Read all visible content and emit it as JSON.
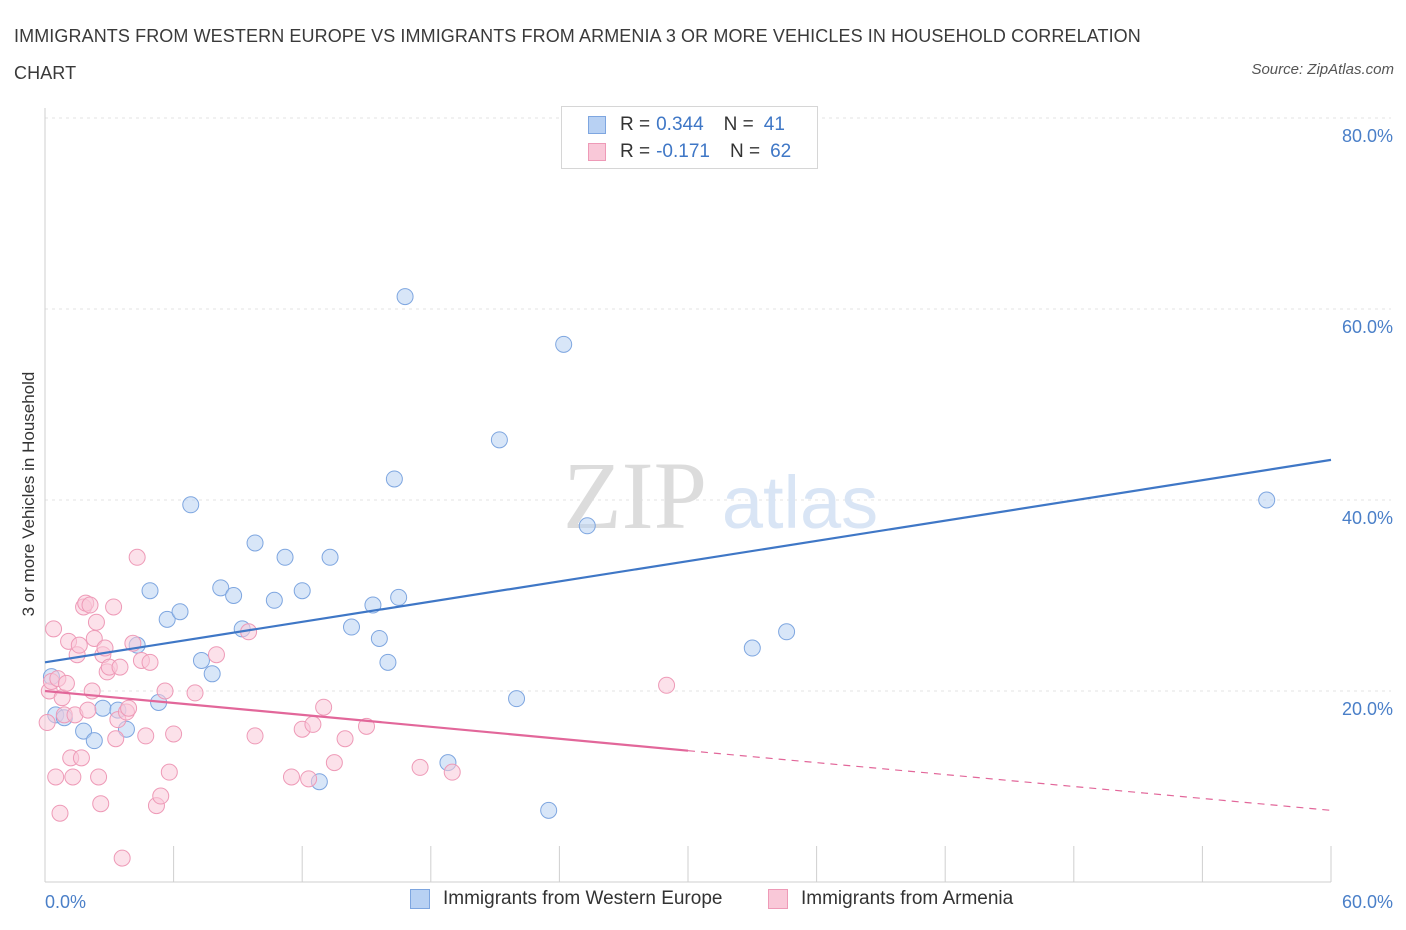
{
  "header": {
    "title": "IMMIGRANTS FROM WESTERN EUROPE VS IMMIGRANTS FROM ARMENIA 3 OR MORE VEHICLES IN HOUSEHOLD CORRELATION CHART",
    "source": "Source: ZipAtlas.com"
  },
  "watermark": {
    "zip": "ZIP",
    "atlas": "atlas"
  },
  "legend": {
    "r_label": "R =",
    "n_label": "N =",
    "rows": [
      {
        "r": "0.344",
        "n": "41",
        "fill": "#b8d1f3",
        "stroke": "#7ea6e0"
      },
      {
        "r": "-0.171",
        "n": "62",
        "fill": "#f9c8d8",
        "stroke": "#ee9ab7"
      }
    ]
  },
  "bottom_legend": [
    {
      "label": "Immigrants from Western Europe",
      "fill": "#b8d1f3",
      "stroke": "#7ea6e0"
    },
    {
      "label": "Immigrants from Armenia",
      "fill": "#f9c8d8",
      "stroke": "#ee9ab7"
    }
  ],
  "chart_data": {
    "type": "scatter",
    "ylabel": "3 or more Vehicles in Household",
    "xlim": [
      0,
      60
    ],
    "ylim": [
      0,
      80
    ],
    "x_tick_labels": [
      "0.0%",
      "60.0%"
    ],
    "y_ticks": [
      20,
      40,
      60,
      80
    ],
    "y_tick_labels": [
      "20.0%",
      "40.0%",
      "60.0%",
      "80.0%"
    ],
    "grid": true,
    "series": [
      {
        "name": "Immigrants from Western Europe",
        "color": "#3f77c6",
        "fill": "#b8d1f3",
        "stroke": "#7ea6e0",
        "trend": {
          "x": [
            0,
            60
          ],
          "y": [
            23.0,
            44.2
          ],
          "dashed_from": null
        },
        "points": [
          [
            0.3,
            21.5
          ],
          [
            0.5,
            17.5
          ],
          [
            0.9,
            17.2
          ],
          [
            1.8,
            15.8
          ],
          [
            2.3,
            14.8
          ],
          [
            2.7,
            18.2
          ],
          [
            3.4,
            18.0
          ],
          [
            3.8,
            16.0
          ],
          [
            4.3,
            24.8
          ],
          [
            4.9,
            30.5
          ],
          [
            5.3,
            18.8
          ],
          [
            5.7,
            27.5
          ],
          [
            6.3,
            28.3
          ],
          [
            6.8,
            39.5
          ],
          [
            7.3,
            23.2
          ],
          [
            7.8,
            21.8
          ],
          [
            8.2,
            30.8
          ],
          [
            8.8,
            30.0
          ],
          [
            9.2,
            26.5
          ],
          [
            9.8,
            35.5
          ],
          [
            10.7,
            29.5
          ],
          [
            11.2,
            34.0
          ],
          [
            12.0,
            30.5
          ],
          [
            12.8,
            10.5
          ],
          [
            13.3,
            34.0
          ],
          [
            14.3,
            26.7
          ],
          [
            15.3,
            29.0
          ],
          [
            15.6,
            25.5
          ],
          [
            16.0,
            23.0
          ],
          [
            16.3,
            42.2
          ],
          [
            16.5,
            29.8
          ],
          [
            16.8,
            61.3
          ],
          [
            18.8,
            12.5
          ],
          [
            21.2,
            46.3
          ],
          [
            22.0,
            19.2
          ],
          [
            23.5,
            7.5
          ],
          [
            24.2,
            56.3
          ],
          [
            25.3,
            37.3
          ],
          [
            33.0,
            24.5
          ],
          [
            34.6,
            26.2
          ],
          [
            57.0,
            40.0
          ]
        ]
      },
      {
        "name": "Immigrants from Armenia",
        "color": "#e2679a",
        "fill": "#f9c8d8",
        "stroke": "#ee9ab7",
        "trend": {
          "x": [
            0,
            60
          ],
          "y": [
            20.0,
            7.5
          ],
          "dashed_from": 30
        },
        "points": [
          [
            0.1,
            16.7
          ],
          [
            0.2,
            20.0
          ],
          [
            0.3,
            21.0
          ],
          [
            0.4,
            26.5
          ],
          [
            0.5,
            11.0
          ],
          [
            0.6,
            21.3
          ],
          [
            0.7,
            7.2
          ],
          [
            0.8,
            19.3
          ],
          [
            0.9,
            17.5
          ],
          [
            1.0,
            20.8
          ],
          [
            1.1,
            25.2
          ],
          [
            1.2,
            13.0
          ],
          [
            1.3,
            11.0
          ],
          [
            1.4,
            17.5
          ],
          [
            1.5,
            23.8
          ],
          [
            1.6,
            24.8
          ],
          [
            1.7,
            13.0
          ],
          [
            1.8,
            28.8
          ],
          [
            1.9,
            29.2
          ],
          [
            2.0,
            18.0
          ],
          [
            2.1,
            29.0
          ],
          [
            2.2,
            20.0
          ],
          [
            2.3,
            25.5
          ],
          [
            2.4,
            27.2
          ],
          [
            2.5,
            11.0
          ],
          [
            2.6,
            8.2
          ],
          [
            2.7,
            23.8
          ],
          [
            2.8,
            24.5
          ],
          [
            2.9,
            22.0
          ],
          [
            3.0,
            22.5
          ],
          [
            3.2,
            28.8
          ],
          [
            3.3,
            15.0
          ],
          [
            3.4,
            17.0
          ],
          [
            3.5,
            22.5
          ],
          [
            3.6,
            2.5
          ],
          [
            3.8,
            17.8
          ],
          [
            3.9,
            18.2
          ],
          [
            4.1,
            25.0
          ],
          [
            4.3,
            34.0
          ],
          [
            4.5,
            23.2
          ],
          [
            4.7,
            15.3
          ],
          [
            4.9,
            23.0
          ],
          [
            5.2,
            8.0
          ],
          [
            5.4,
            9.0
          ],
          [
            5.6,
            20.0
          ],
          [
            5.8,
            11.5
          ],
          [
            6.0,
            15.5
          ],
          [
            7.0,
            19.8
          ],
          [
            8.0,
            23.8
          ],
          [
            9.5,
            26.2
          ],
          [
            9.8,
            15.3
          ],
          [
            11.5,
            11.0
          ],
          [
            12.0,
            16.0
          ],
          [
            12.5,
            16.5
          ],
          [
            13.0,
            18.3
          ],
          [
            12.3,
            10.8
          ],
          [
            13.5,
            12.5
          ],
          [
            14.0,
            15.0
          ],
          [
            15.0,
            16.3
          ],
          [
            17.5,
            12.0
          ],
          [
            19.0,
            11.5
          ],
          [
            29.0,
            20.6
          ]
        ]
      }
    ]
  }
}
